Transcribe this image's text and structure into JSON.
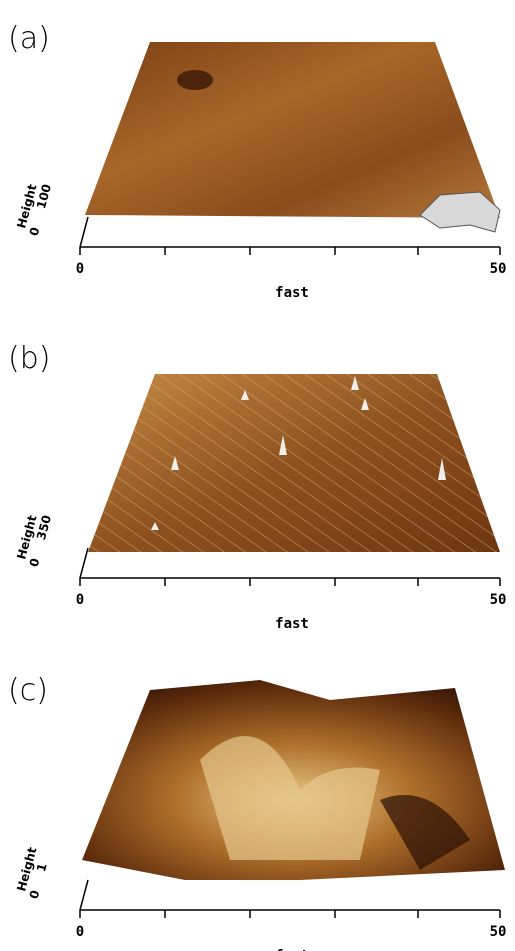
{
  "panels": [
    {
      "label": "(a)",
      "x_axis": {
        "start": "0",
        "end": "50",
        "label": "fast"
      },
      "height_axis": {
        "top": "100",
        "bottom": "0",
        "label": "Height"
      }
    },
    {
      "label": "(b)",
      "x_axis": {
        "start": "0",
        "end": "50",
        "label": "fast"
      },
      "height_axis": {
        "top": "350",
        "bottom": "0",
        "label": "Height"
      }
    },
    {
      "label": "(c)",
      "x_axis": {
        "start": "0",
        "end": "50",
        "label": "fast"
      },
      "height_axis": {
        "top": "1",
        "bottom": "0",
        "label": "Height"
      }
    }
  ]
}
